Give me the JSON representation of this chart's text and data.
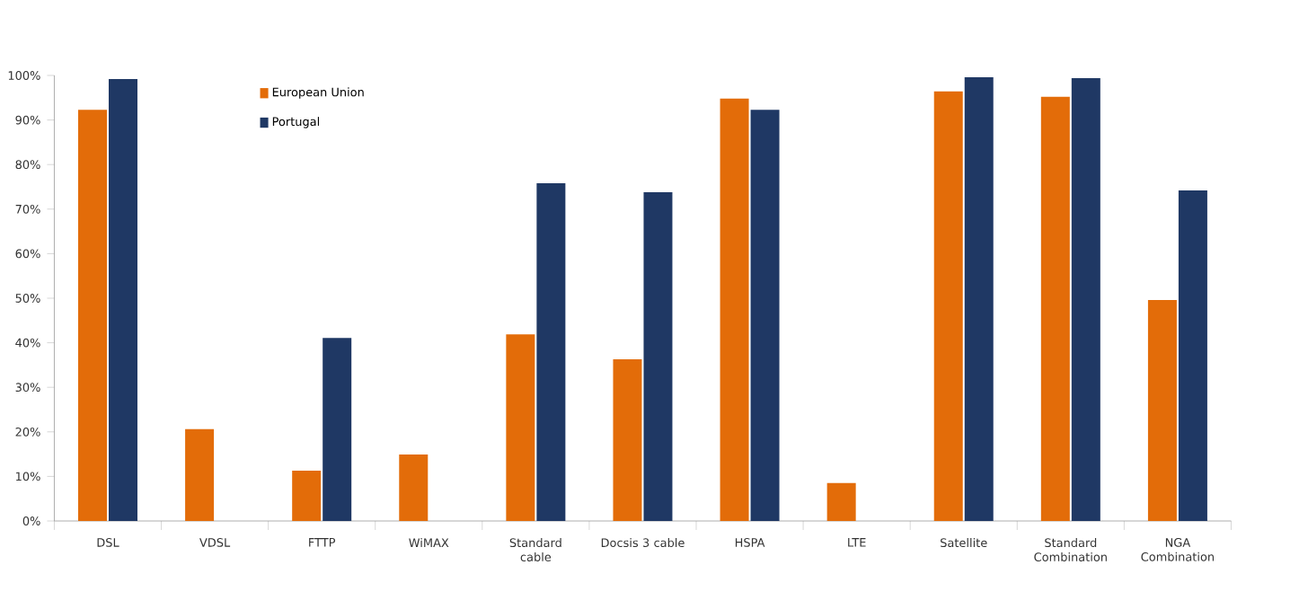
{
  "chart_data": {
    "type": "bar",
    "categories": [
      "DSL",
      "VDSL",
      "FTTP",
      "WiMAX",
      "Standard cable",
      "Docsis 3 cable",
      "HSPA",
      "LTE",
      "Satellite",
      "Standard Combination",
      "NGA Combination"
    ],
    "series": [
      {
        "name": "European Union",
        "color": "#e36c09",
        "values": [
          92.3,
          20.6,
          11.3,
          14.9,
          41.9,
          36.3,
          94.8,
          8.5,
          96.4,
          95.2,
          49.6
        ]
      },
      {
        "name": "Portugal",
        "color": "#1f3864",
        "values": [
          99.2,
          null,
          41.1,
          null,
          75.8,
          73.8,
          92.3,
          null,
          99.6,
          99.4,
          74.2
        ]
      }
    ],
    "ylim": [
      0,
      100
    ],
    "yticks": [
      {
        "value": 0,
        "label": "0%"
      },
      {
        "value": 10,
        "label": "10%"
      },
      {
        "value": 20,
        "label": "20%"
      },
      {
        "value": 30,
        "label": "30%"
      },
      {
        "value": 40,
        "label": "40%"
      },
      {
        "value": 50,
        "label": "50%"
      },
      {
        "value": 60,
        "label": "60%"
      },
      {
        "value": 70,
        "label": "70%"
      },
      {
        "value": 80,
        "label": "80%"
      },
      {
        "value": 90,
        "label": "90%"
      },
      {
        "value": 100,
        "label": "100%"
      }
    ],
    "grid": false,
    "legend": "top left"
  }
}
